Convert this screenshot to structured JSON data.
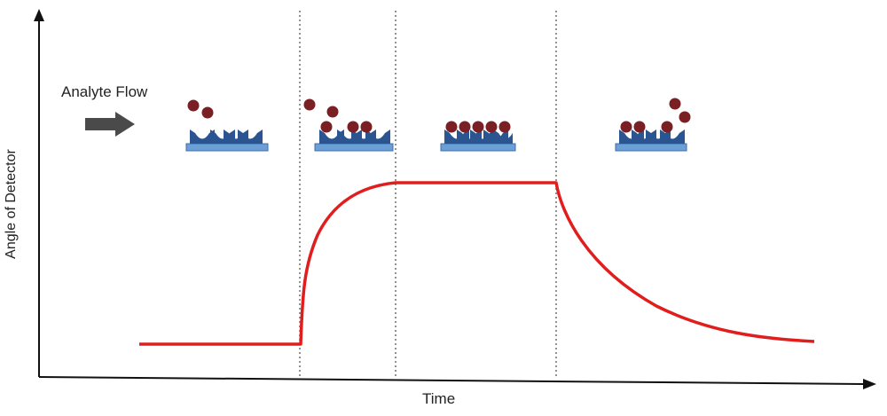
{
  "labels": {
    "flow": "Analyte Flow",
    "x_axis": "Time",
    "y_axis": "Angle of Detector"
  },
  "colors": {
    "signal_curve": "#e01e1e",
    "sensor_surface": "#6a9fd8",
    "receptor": "#2a5590",
    "analyte": "#7a1f24",
    "arrow": "#4a4a4a",
    "divider": "#777777"
  },
  "icons": {
    "flow_arrow": "right-arrow-icon",
    "sensor": "sensor-chip-icon",
    "analyte": "analyte-molecule-icon"
  },
  "phases": [
    "baseline",
    "association",
    "equilibrium",
    "dissociation"
  ]
}
